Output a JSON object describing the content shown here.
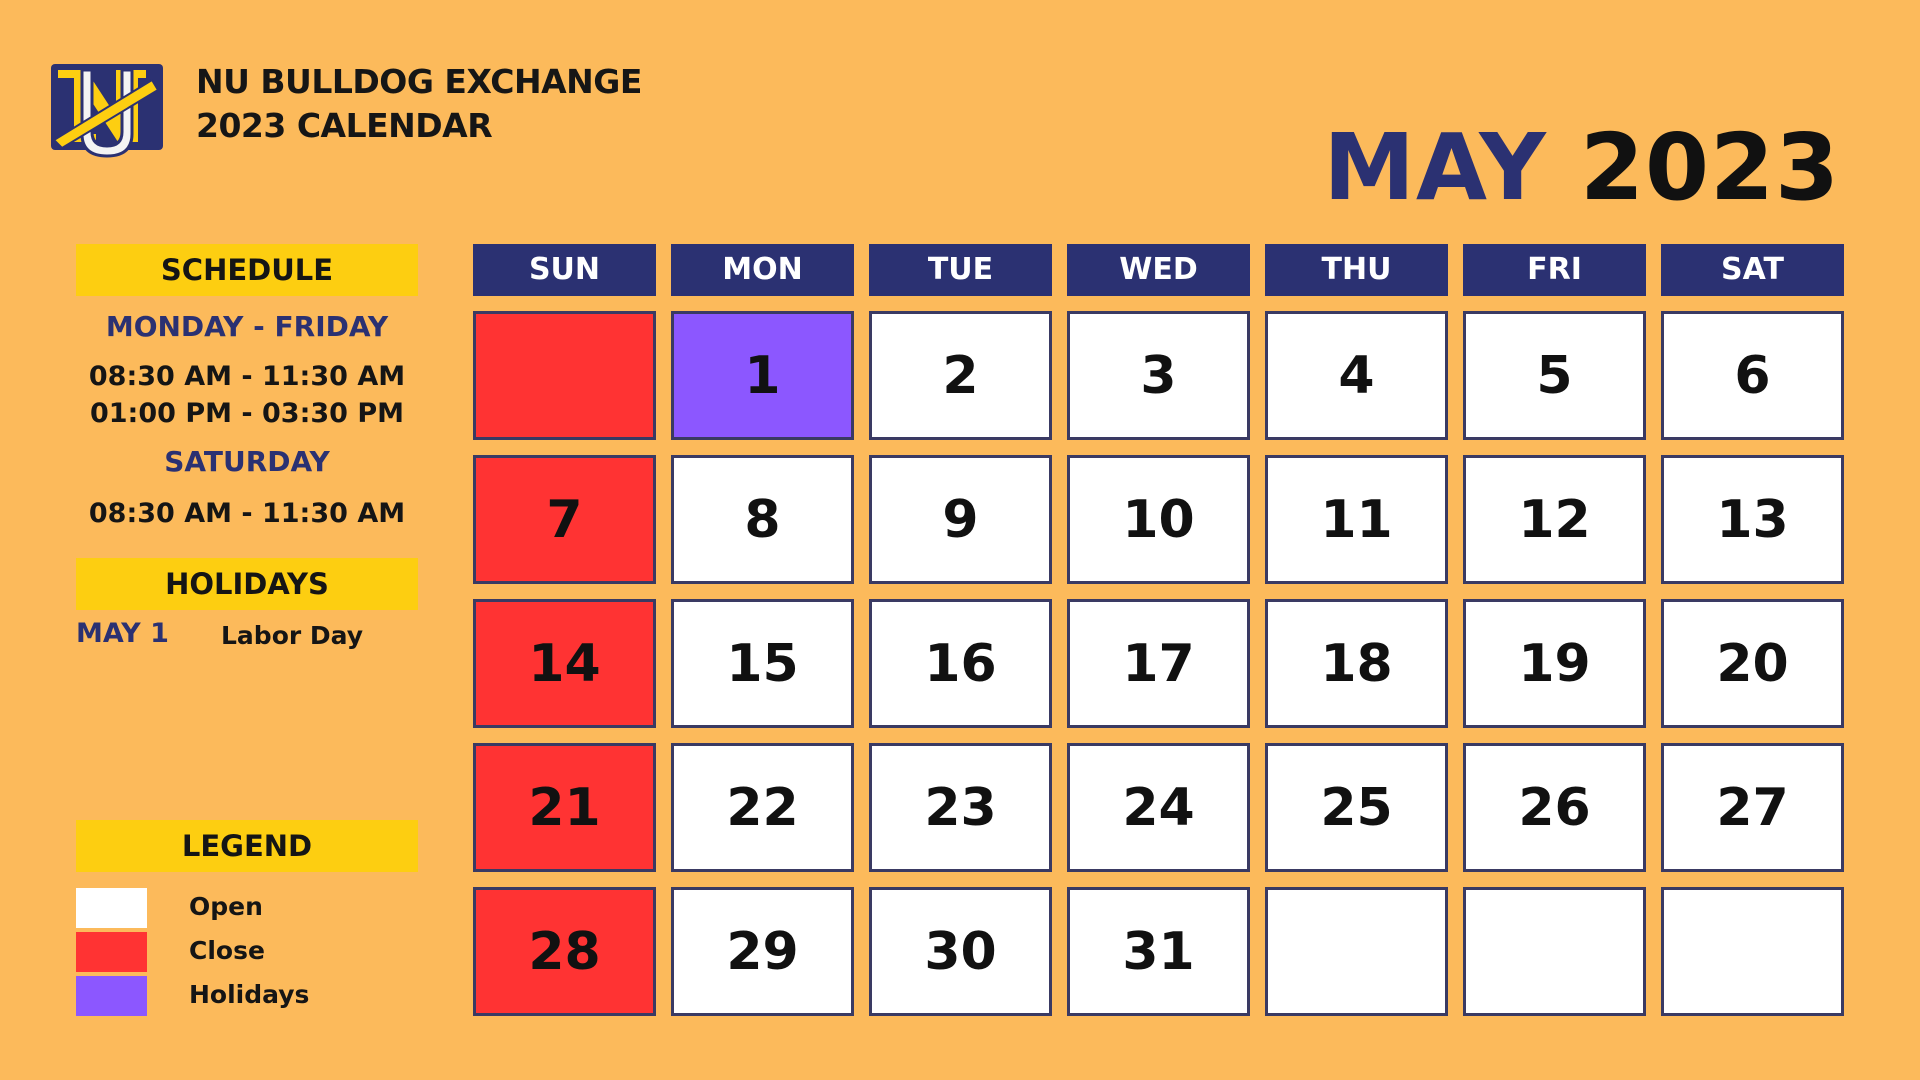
{
  "header": {
    "brand_line1": "NU BULLDOG EXCHANGE",
    "brand_line2": "2023 CALENDAR",
    "logo_letters": "NU",
    "month": "MAY",
    "year": "2023"
  },
  "schedule": {
    "title": "SCHEDULE",
    "weekday_label": "MONDAY - FRIDAY",
    "weekday_morning": "08:30 AM - 11:30 AM",
    "weekday_afternoon": "01:00 PM - 03:30 PM",
    "saturday_label": "SATURDAY",
    "saturday_hours": "08:30 AM - 11:30 AM"
  },
  "holidays": {
    "title": "HOLIDAYS",
    "items": [
      {
        "date": "MAY 1",
        "name": "Labor Day"
      }
    ]
  },
  "legend": {
    "title": "LEGEND",
    "items": [
      {
        "label": "Open",
        "color": "#ffffff"
      },
      {
        "label": "Close",
        "color": "#ff3333"
      },
      {
        "label": "Holidays",
        "color": "#8c57ff"
      }
    ]
  },
  "calendar": {
    "day_headers": [
      "SUN",
      "MON",
      "TUE",
      "WED",
      "THU",
      "FRI",
      "SAT"
    ],
    "weeks": [
      [
        {
          "day": "",
          "status": "close"
        },
        {
          "day": "1",
          "status": "holiday"
        },
        {
          "day": "2",
          "status": "open"
        },
        {
          "day": "3",
          "status": "open"
        },
        {
          "day": "4",
          "status": "open"
        },
        {
          "day": "5",
          "status": "open"
        },
        {
          "day": "6",
          "status": "open"
        }
      ],
      [
        {
          "day": "7",
          "status": "close"
        },
        {
          "day": "8",
          "status": "open"
        },
        {
          "day": "9",
          "status": "open"
        },
        {
          "day": "10",
          "status": "open"
        },
        {
          "day": "11",
          "status": "open"
        },
        {
          "day": "12",
          "status": "open"
        },
        {
          "day": "13",
          "status": "open"
        }
      ],
      [
        {
          "day": "14",
          "status": "close"
        },
        {
          "day": "15",
          "status": "open"
        },
        {
          "day": "16",
          "status": "open"
        },
        {
          "day": "17",
          "status": "open"
        },
        {
          "day": "18",
          "status": "open"
        },
        {
          "day": "19",
          "status": "open"
        },
        {
          "day": "20",
          "status": "open"
        }
      ],
      [
        {
          "day": "21",
          "status": "close"
        },
        {
          "day": "22",
          "status": "open"
        },
        {
          "day": "23",
          "status": "open"
        },
        {
          "day": "24",
          "status": "open"
        },
        {
          "day": "25",
          "status": "open"
        },
        {
          "day": "26",
          "status": "open"
        },
        {
          "day": "27",
          "status": "open"
        }
      ],
      [
        {
          "day": "28",
          "status": "close"
        },
        {
          "day": "29",
          "status": "open"
        },
        {
          "day": "30",
          "status": "open"
        },
        {
          "day": "31",
          "status": "open"
        },
        {
          "day": "",
          "status": "open"
        },
        {
          "day": "",
          "status": "open"
        },
        {
          "day": "",
          "status": "open"
        }
      ]
    ]
  },
  "colors": {
    "background": "#fcba5b",
    "navy": "#2b3172",
    "yellow": "#fdce11",
    "close": "#ff3333",
    "holiday": "#8c57ff",
    "open": "#ffffff"
  }
}
